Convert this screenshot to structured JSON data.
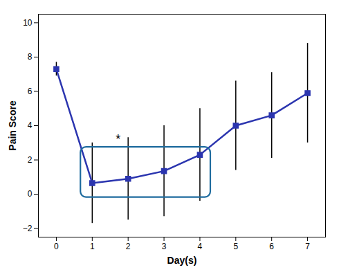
{
  "chart_data": {
    "type": "line",
    "x": [
      0,
      1,
      2,
      3,
      4,
      5,
      6,
      7
    ],
    "series": [
      {
        "values": [
          7.3,
          0.65,
          0.9,
          1.35,
          2.3,
          4.0,
          4.6,
          5.9
        ],
        "errors": [
          0.4,
          2.35,
          2.4,
          2.65,
          2.7,
          2.6,
          2.5,
          2.9
        ],
        "color": "#2B35AF",
        "marker": "square",
        "line_style": "solid"
      }
    ],
    "xlabel": "Day(s)",
    "ylabel": "Pain Score",
    "xlim": [
      -0.5,
      7.5
    ],
    "ylim": [
      -2.5,
      10.5
    ],
    "xticks": [
      0,
      1,
      2,
      3,
      4,
      5,
      6,
      7
    ],
    "yticks": [
      -2,
      0,
      2,
      4,
      6,
      8,
      10
    ],
    "grid": false,
    "annotations": [
      {
        "type": "box",
        "x": 0.68,
        "y": -0.18,
        "width": 3.62,
        "height": 2.92,
        "color": "#1E6B9E"
      },
      {
        "text": "*",
        "x": 1.72,
        "y": 3.2
      }
    ]
  }
}
